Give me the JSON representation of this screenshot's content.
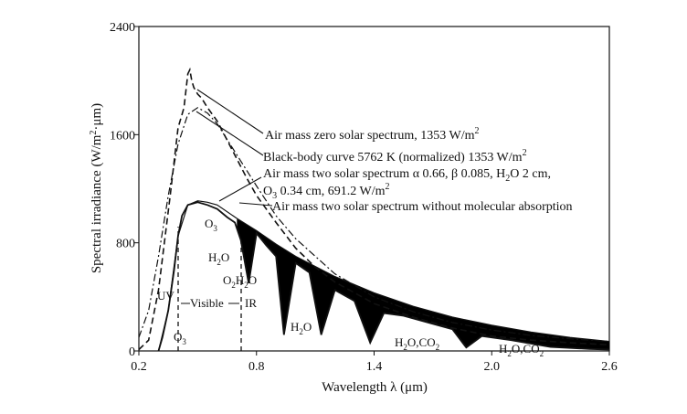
{
  "chart_data": {
    "type": "line",
    "title": "",
    "xlabel": "Wavelength λ (μm)",
    "ylabel": "Spectral irradiance (W/m²·μm)",
    "xlim": [
      0.2,
      2.6
    ],
    "ylim": [
      0,
      2400
    ],
    "x_ticks": [
      "0.2",
      "0.8",
      "1.4",
      "2.0",
      "2.6"
    ],
    "x_tick_values": [
      0.2,
      0.8,
      1.4,
      2.0,
      2.6
    ],
    "y_ticks": [
      "0",
      "800",
      "1600",
      "2400"
    ],
    "y_tick_values": [
      0,
      800,
      1600,
      2400
    ],
    "series": [
      {
        "name": "Air mass zero solar spectrum, 1353 W/m²",
        "style": "dashed",
        "x": [
          0.2,
          0.25,
          0.3,
          0.33,
          0.36,
          0.4,
          0.43,
          0.45,
          0.46,
          0.47,
          0.48,
          0.5,
          0.52,
          0.55,
          0.6,
          0.65,
          0.7,
          0.75,
          0.8,
          0.9,
          1.0,
          1.1,
          1.2,
          1.4,
          1.6,
          1.8,
          2.0,
          2.2,
          2.4,
          2.6
        ],
        "y": [
          10,
          80,
          450,
          800,
          1150,
          1650,
          1800,
          2050,
          2080,
          2000,
          1950,
          1900,
          1870,
          1800,
          1700,
          1560,
          1420,
          1280,
          1150,
          950,
          760,
          620,
          510,
          350,
          250,
          170,
          110,
          80,
          60,
          45
        ]
      },
      {
        "name": "Black-body curve 5762 K (normalized) 1353 W/m²",
        "style": "dash-dot",
        "x": [
          0.2,
          0.25,
          0.3,
          0.35,
          0.4,
          0.45,
          0.5,
          0.55,
          0.6,
          0.7,
          0.8,
          0.9,
          1.0,
          1.2,
          1.4,
          1.6,
          1.8,
          2.0,
          2.2,
          2.4,
          2.6
        ],
        "y": [
          100,
          300,
          700,
          1150,
          1530,
          1750,
          1800,
          1760,
          1680,
          1450,
          1220,
          1000,
          830,
          570,
          400,
          290,
          210,
          155,
          115,
          90,
          70
        ]
      },
      {
        "name": "Air mass two solar spectrum α 0.66, β 0.085, H₂O 2 cm, O₃ 0.34 cm, 691.2 W/m²",
        "style": "solid-filled-absorption",
        "x": [
          0.3,
          0.32,
          0.35,
          0.38,
          0.4,
          0.42,
          0.45,
          0.5,
          0.55,
          0.6,
          0.65,
          0.69,
          0.72,
          0.76,
          0.8,
          0.85,
          0.9,
          0.94,
          1.0,
          1.07,
          1.13,
          1.2,
          1.3,
          1.38,
          1.45,
          1.55,
          1.7,
          1.8,
          1.87,
          1.95,
          2.1,
          2.3,
          2.5,
          2.6
        ],
        "y": [
          0,
          100,
          300,
          600,
          850,
          1000,
          1080,
          1100,
          1080,
          1050,
          990,
          950,
          820,
          500,
          870,
          780,
          700,
          120,
          650,
          580,
          120,
          450,
          370,
          60,
          280,
          260,
          200,
          160,
          25,
          110,
          80,
          30,
          15,
          10
        ]
      },
      {
        "name": "Air mass two solar spectrum without molecular absorption",
        "style": "solid",
        "x": [
          0.3,
          0.35,
          0.4,
          0.45,
          0.5,
          0.55,
          0.6,
          0.7,
          0.8,
          0.9,
          1.0,
          1.2,
          1.4,
          1.6,
          1.8,
          2.0,
          2.2,
          2.4,
          2.6
        ],
        "y": [
          0,
          300,
          850,
          1080,
          1110,
          1100,
          1080,
          980,
          890,
          790,
          700,
          550,
          430,
          330,
          250,
          190,
          140,
          100,
          70
        ]
      }
    ],
    "annotations": {
      "amz": "Air mass zero solar spectrum, 1353 W/m",
      "bb": "Black-body curve 5762 K (normalized) 1353 W/m",
      "am2_line1": "Air mass two solar spectrum α 0.66, β 0.085, H",
      "am2_line1_tail": "O 2 cm,",
      "am2_line2_o": "O",
      "am2_line2": " 0.34 cm, 691.2 W/m",
      "am2nm": "Air mass two solar spectrum without molecular absorption",
      "sup2": "2",
      "sub2": "2",
      "sub3": "3",
      "O": "O",
      "H": "H",
      "uv": "UV",
      "visible": "Visible",
      "ir": "IR",
      "h2o_co2": ", CO",
      "h2o_co2_b": ",CO"
    }
  }
}
